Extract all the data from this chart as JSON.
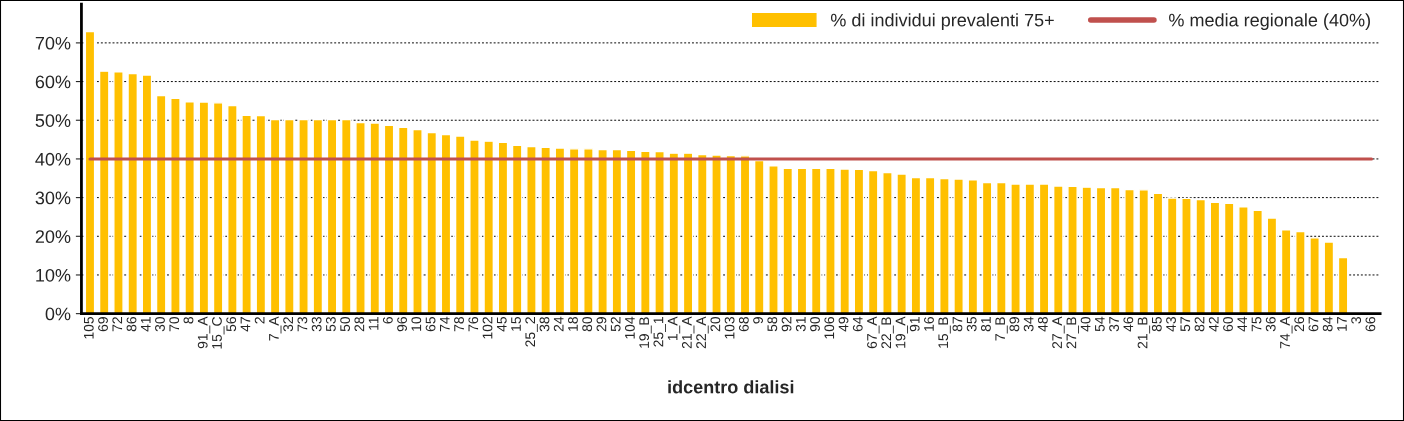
{
  "chart_data": {
    "type": "bar",
    "xlabel": "idcentro dialisi",
    "categories": [
      "105",
      "69",
      "72",
      "86",
      "41",
      "30",
      "70",
      "8",
      "91_A",
      "15_C",
      "56",
      "47",
      "2",
      "7_A",
      "32",
      "73",
      "33",
      "53",
      "50",
      "28",
      "11",
      "6",
      "96",
      "10",
      "65",
      "74",
      "78",
      "76",
      "102",
      "45",
      "15",
      "25_2",
      "38",
      "24",
      "18",
      "80",
      "29",
      "52",
      "104",
      "19_B",
      "25_1",
      "1_A",
      "21_A",
      "22_A",
      "20",
      "103",
      "68",
      "9",
      "58",
      "92",
      "31",
      "90",
      "106",
      "49",
      "64",
      "67_A",
      "22_B",
      "19_A",
      "91",
      "16",
      "15_B",
      "87",
      "35",
      "81",
      "7_B",
      "89",
      "34",
      "48",
      "27_A",
      "27_B",
      "40",
      "54",
      "37",
      "46",
      "21_B",
      "85",
      "43",
      "57",
      "82",
      "42",
      "60",
      "44",
      "75",
      "36",
      "74_A",
      "26",
      "67",
      "84",
      "17",
      "3",
      "66"
    ],
    "series": [
      {
        "name": "% di individui prevalenti 75+",
        "color": "#ffc000",
        "values": [
          72.9,
          62.7,
          62.5,
          62.1,
          61.7,
          56.4,
          55.7,
          54.8,
          54.7,
          54.5,
          53.8,
          51.3,
          51.2,
          50.2,
          50.2,
          50.2,
          50.2,
          50.2,
          50.2,
          49.4,
          49.3,
          48.7,
          48.2,
          47.6,
          46.8,
          46.3,
          45.9,
          44.9,
          44.6,
          44.3,
          43.5,
          43.2,
          43.0,
          42.8,
          42.6,
          42.6,
          42.4,
          42.4,
          42.2,
          42.0,
          41.9,
          41.5,
          41.5,
          41.1,
          41.0,
          40.9,
          40.8,
          39.6,
          38.2,
          37.6,
          37.6,
          37.6,
          37.6,
          37.4,
          37.3,
          37.0,
          36.5,
          36.1,
          35.2,
          35.2,
          34.9,
          34.8,
          34.6,
          33.9,
          33.9,
          33.5,
          33.5,
          33.5,
          33.0,
          32.9,
          32.7,
          32.6,
          32.6,
          32.1,
          32.0,
          31.1,
          29.9,
          29.8,
          29.5,
          28.8,
          28.5,
          27.6,
          26.7,
          24.7,
          21.7,
          21.2,
          19.6,
          18.5,
          14.5,
          null,
          null
        ]
      }
    ],
    "ref_lines": [
      {
        "axis": "y",
        "value": 40,
        "label": "% media regionale (40%)",
        "color": "#c0504d"
      }
    ],
    "ylim": [
      0,
      80
    ],
    "yticks": [
      {
        "value": 0,
        "label": "0%"
      },
      {
        "value": 10,
        "label": "10%"
      },
      {
        "value": 20,
        "label": "20%"
      },
      {
        "value": 30,
        "label": "30%"
      },
      {
        "value": 40,
        "label": "40%"
      },
      {
        "value": 50,
        "label": "50%"
      },
      {
        "value": 60,
        "label": "60%"
      },
      {
        "value": 70,
        "label": "70%"
      }
    ],
    "grid": "y",
    "legend": "top right"
  }
}
